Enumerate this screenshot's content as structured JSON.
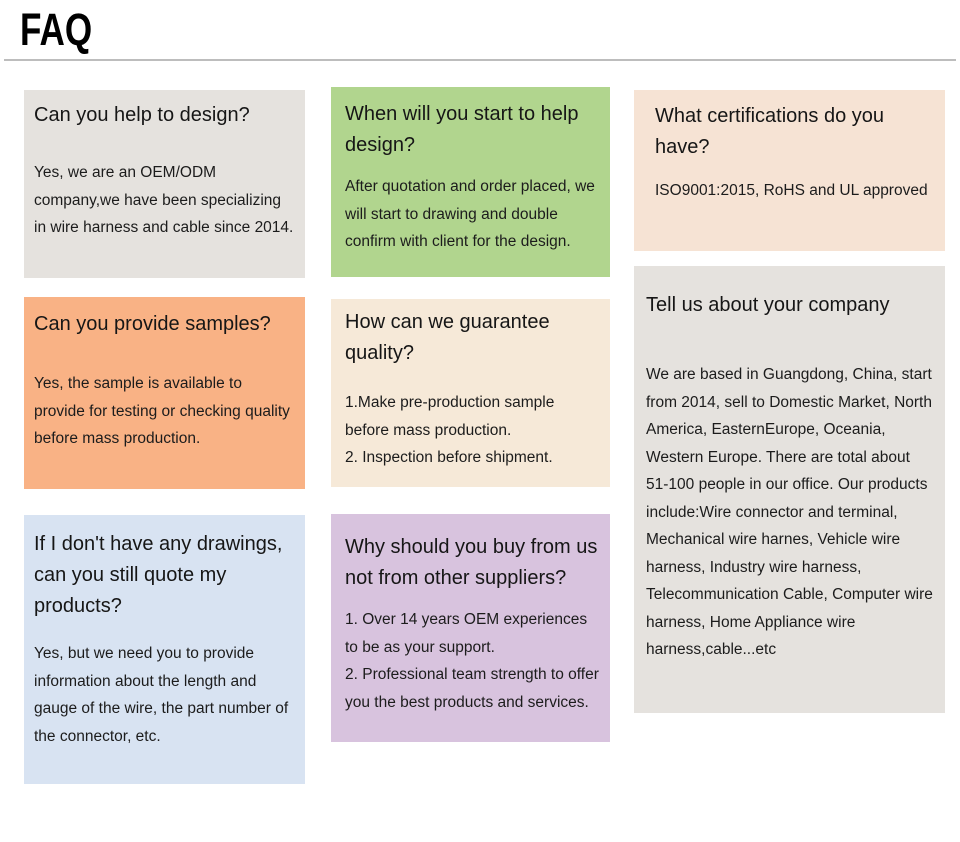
{
  "page": {
    "title": "FAQ"
  },
  "colors": {
    "background": "#ffffff",
    "divider": "#bdbdbd",
    "heading_text": "#000000",
    "body_text": "#1c1c1c",
    "card_gray": "#e5e2de",
    "card_green": "#b1d58e",
    "card_peach": "#f6e3d4",
    "card_orange": "#f9b285",
    "card_cream": "#f6e9d8",
    "card_blue": "#d8e3f2",
    "card_purple": "#d8c3de"
  },
  "cards": [
    {
      "question": "Can you help to design?",
      "answers": [
        "Yes, we are an OEM/ODM company,we have been specializing in wire harness and cable since 2014."
      ],
      "bg": "#e5e2de"
    },
    {
      "question": "When will you start to help design?",
      "answers": [
        "After quotation and order placed, we will start to drawing and double confirm with client for the design."
      ],
      "bg": "#b1d58e"
    },
    {
      "question": "What certifications do you have?",
      "answers": [
        "ISO9001:2015, RoHS and UL approved"
      ],
      "bg": "#f6e3d4"
    },
    {
      "question": "Can you provide samples?",
      "answers": [
        "Yes, the sample is available to provide for testing or checking quality before mass production."
      ],
      "bg": "#f9b285"
    },
    {
      "question": "How can we guarantee quality?",
      "answers": [
        "1.Make pre-production sample before mass production.",
        "2. Inspection before shipment."
      ],
      "bg": "#f6e9d8"
    },
    {
      "question": "Tell us about your company",
      "answers": [
        "We are based in Guangdong, China, start from 2014, sell to Domestic Market, North America, EasternEurope, Oceania, Western Europe. There are total about 51-100 people in our office. Our products include:Wire connector and terminal, Mechanical wire harnes, Vehicle wire harness, Industry wire harness, Telecommunication Cable, Computer wire harness, Home Appliance wire harness,cable...etc"
      ],
      "bg": "#e5e2de"
    },
    {
      "question": "If I don't have any drawings, can you still quote my products?",
      "answers": [
        "Yes, but we need you to provide information about the length and gauge of the wire, the part number of the connector, etc."
      ],
      "bg": "#d8e3f2"
    },
    {
      "question": "Why should you buy from us not from other suppliers?",
      "answers": [
        "1. Over 14 years OEM experiences to be as your support.",
        "2. Professional team strength to offer you the best products and services."
      ],
      "bg": "#d8c3de"
    }
  ]
}
